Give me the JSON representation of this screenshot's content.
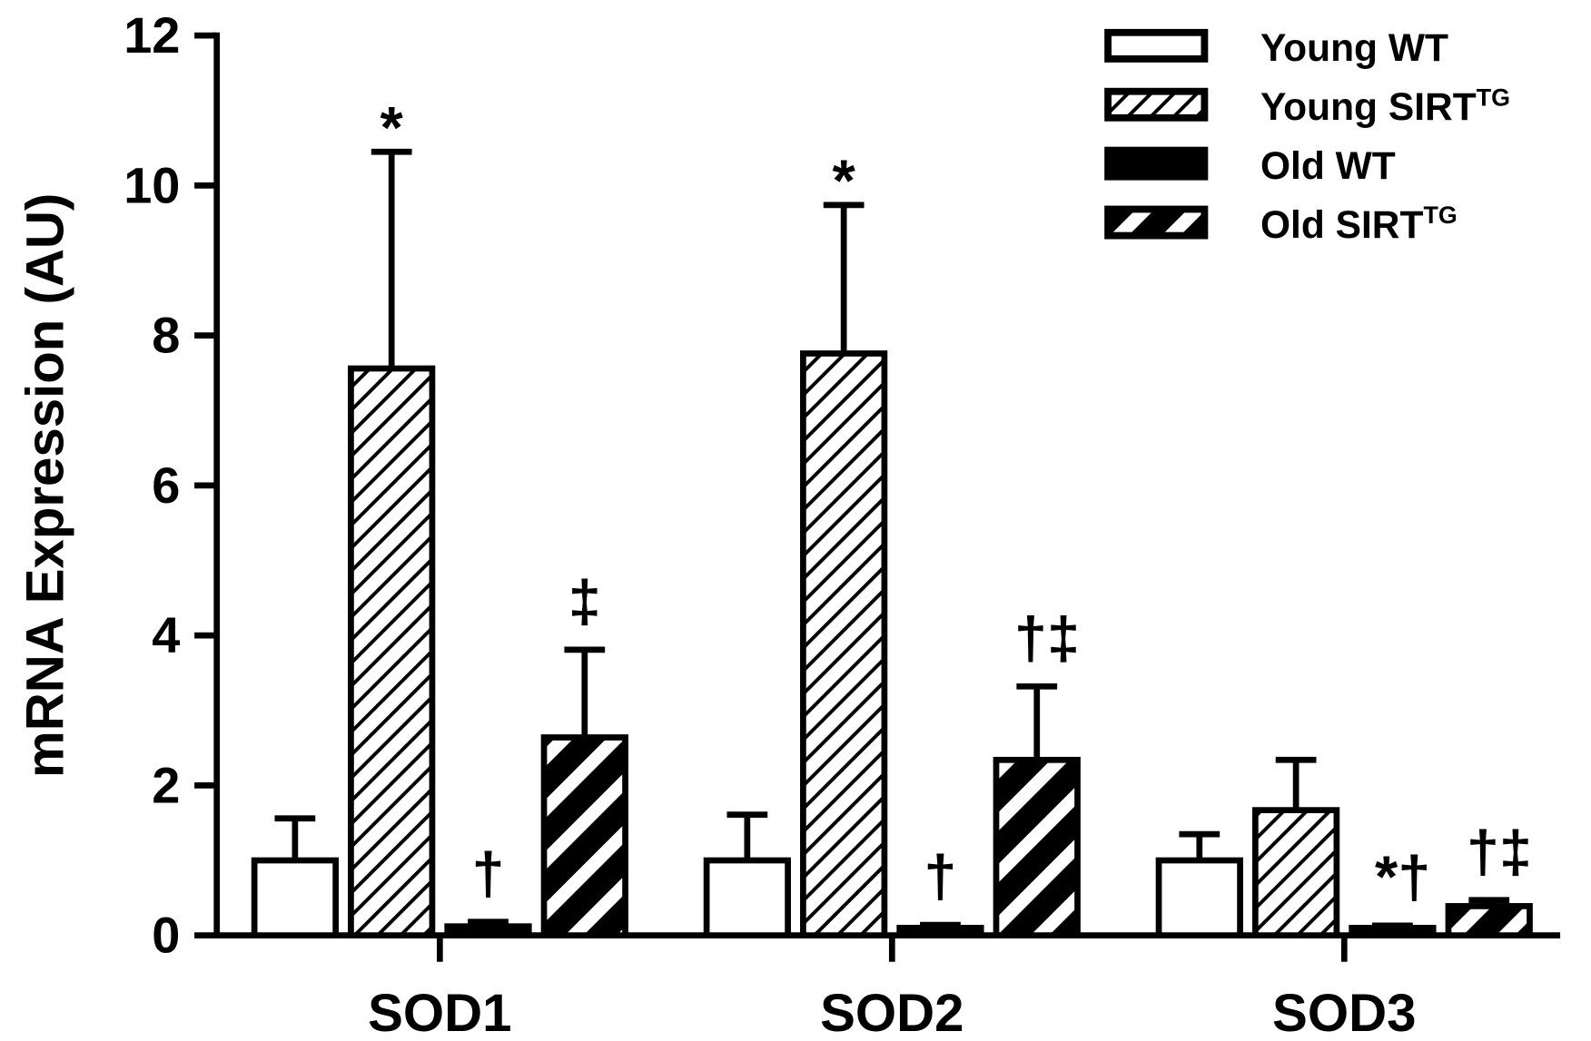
{
  "chart_data": {
    "type": "bar",
    "title": "",
    "xlabel": "",
    "ylabel": "mRNA Expression (AU)",
    "ylim": [
      0,
      12
    ],
    "yticks": [
      "0",
      "2",
      "4",
      "6",
      "8",
      "10",
      "12"
    ],
    "categories": [
      "SOD1",
      "SOD2",
      "SOD3"
    ],
    "legend_position": "top-right",
    "grid": false,
    "series": [
      {
        "name": "Young WT",
        "superscript": "",
        "pattern": "open",
        "values": [
          1.0,
          1.0,
          1.0
        ],
        "error_upper": [
          1.56,
          1.61,
          1.35
        ]
      },
      {
        "name": "Young SIRT",
        "superscript": "TG",
        "pattern": "thin-hatch",
        "values": [
          7.56,
          7.76,
          1.67
        ],
        "error_upper": [
          10.45,
          9.74,
          2.34
        ]
      },
      {
        "name": "Old WT",
        "superscript": "",
        "pattern": "solid-black",
        "values": [
          0.12,
          0.1,
          0.1
        ],
        "error_upper": [
          0.18,
          0.14,
          0.13
        ]
      },
      {
        "name": "Old SIRT",
        "superscript": "TG",
        "pattern": "thick-hatch",
        "values": [
          2.64,
          2.34,
          0.39
        ],
        "error_upper": [
          3.81,
          3.32,
          0.47
        ]
      }
    ],
    "annotations": [
      [
        "",
        "*",
        "†",
        "‡"
      ],
      [
        "",
        "*",
        "†",
        "†‡"
      ],
      [
        "",
        "",
        "*†",
        "†‡"
      ]
    ],
    "colors": {
      "ink": "#000000",
      "background": "#ffffff"
    }
  }
}
